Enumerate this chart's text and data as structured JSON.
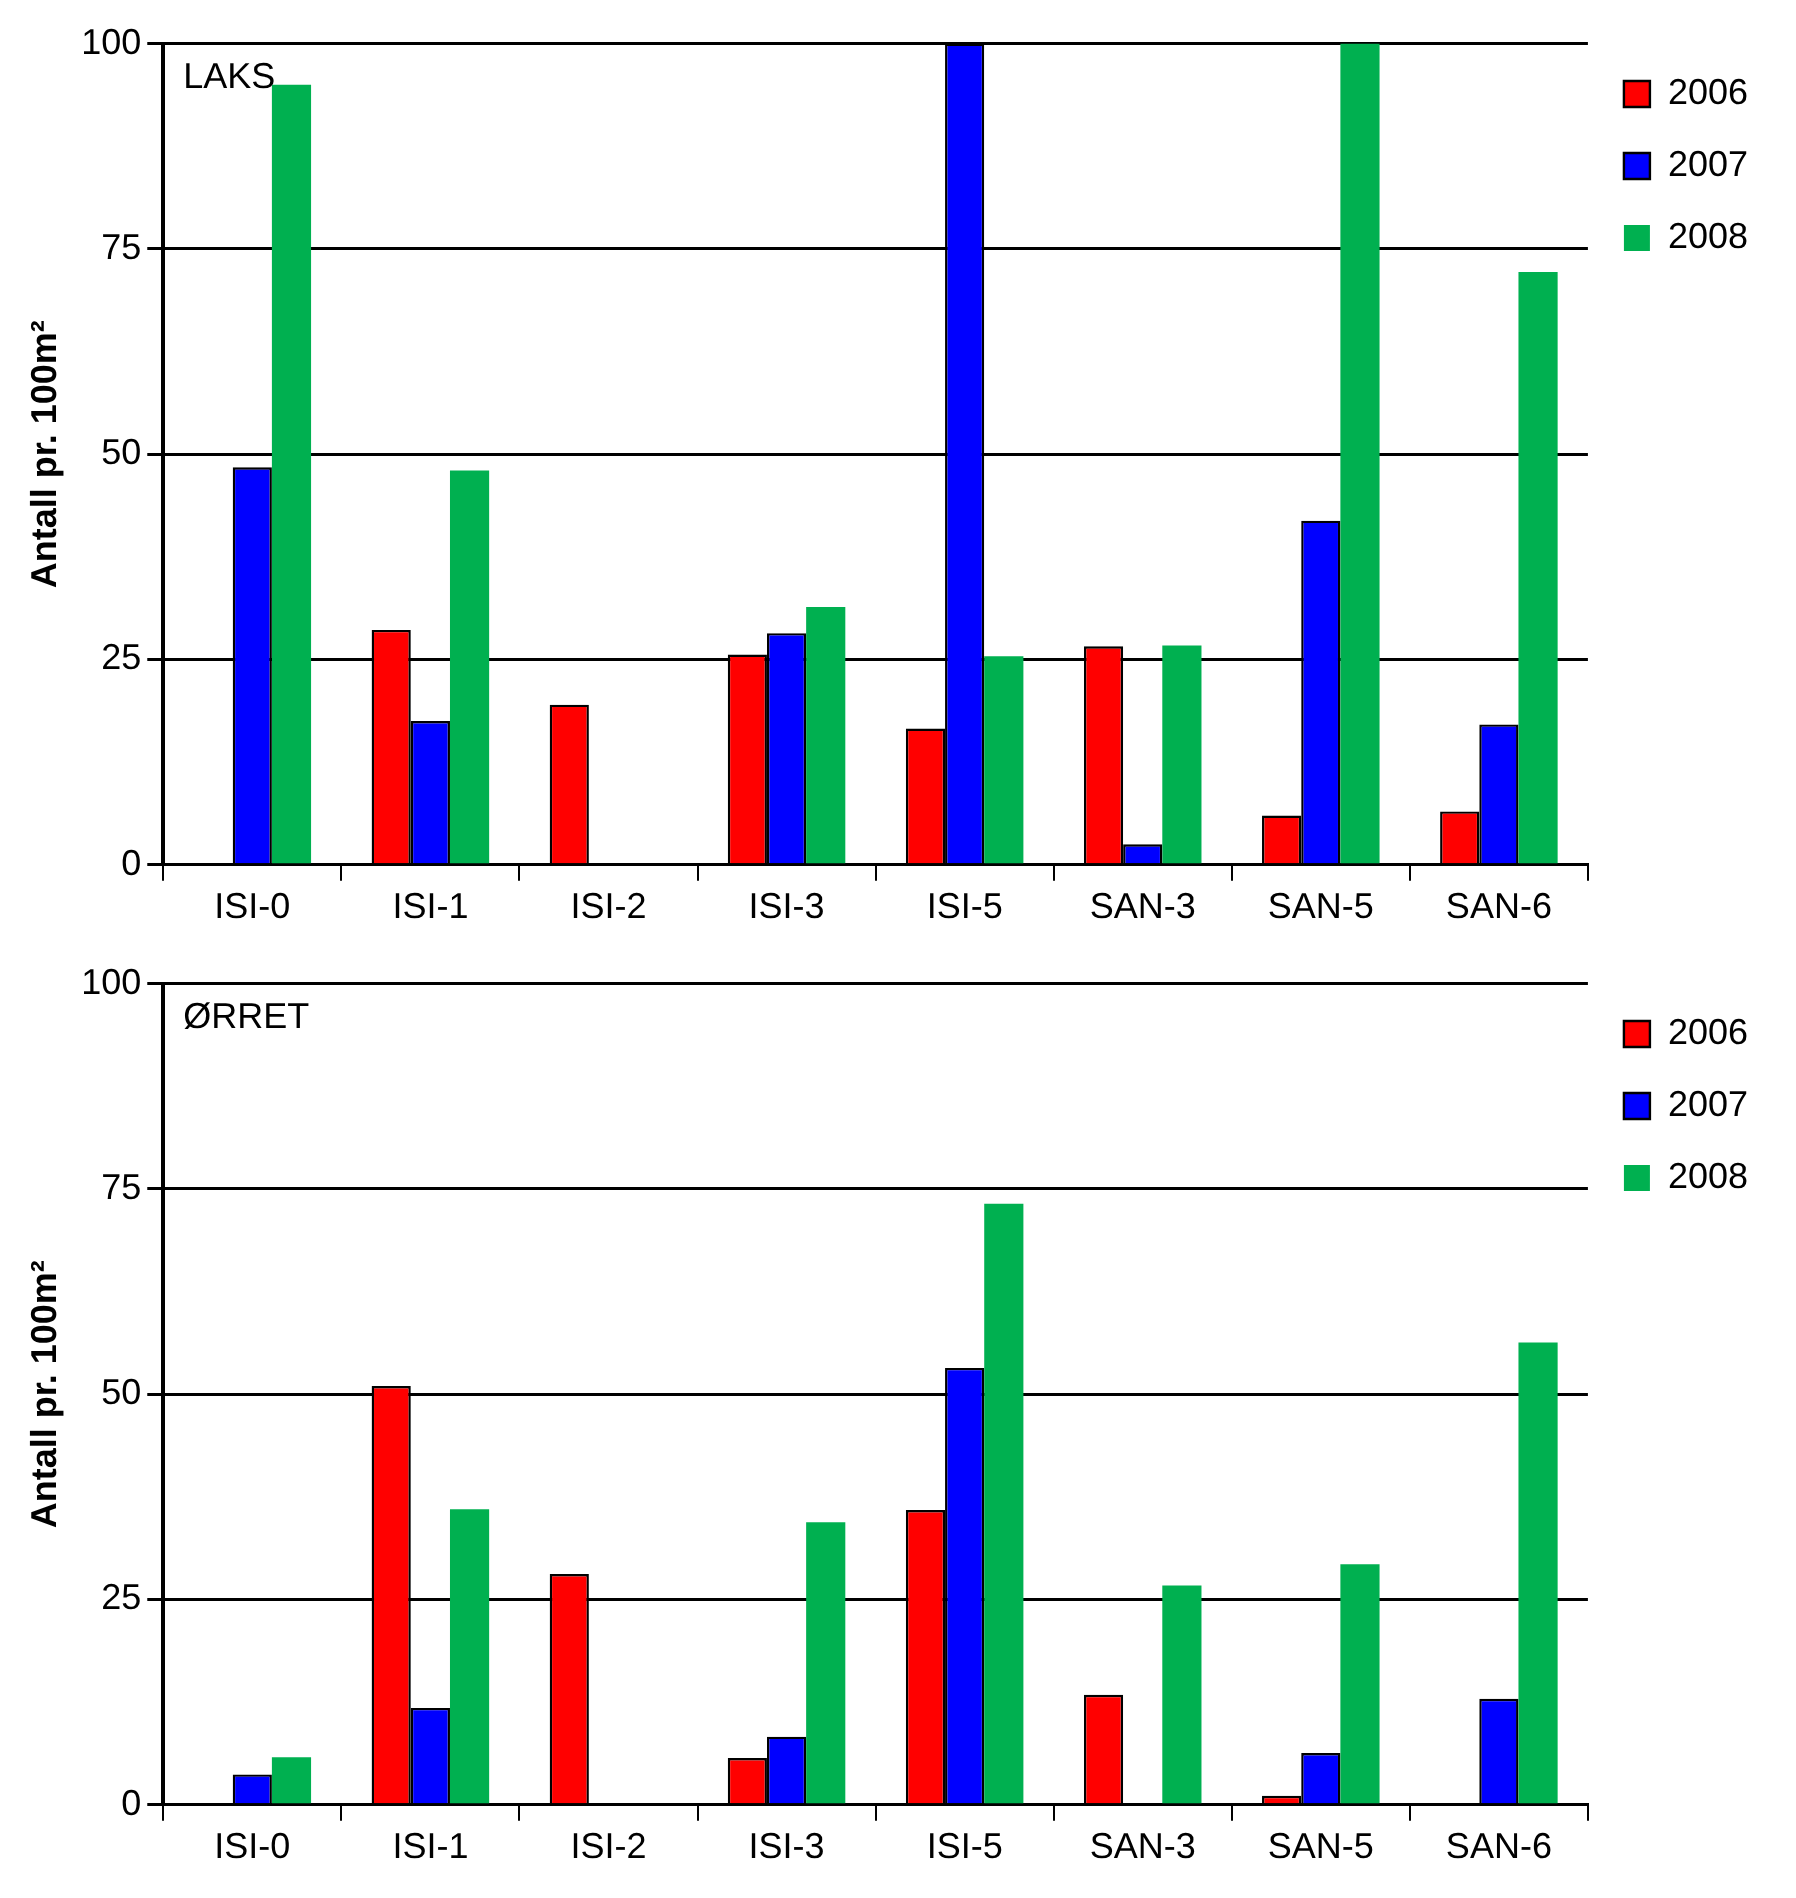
{
  "chart_data": [
    {
      "type": "bar",
      "annotations": [
        "LAKS"
      ],
      "ylabel": "Antall pr. 100m²",
      "categories": [
        "ISI-0",
        "ISI-1",
        "ISI-2",
        "ISI-3",
        "ISI-5",
        "SAN-3",
        "SAN-5",
        "SAN-6"
      ],
      "series": [
        {
          "name": "2006",
          "color": "#ff0000",
          "values": [
            0,
            28.6,
            19.5,
            25.6,
            16.6,
            26.6,
            6,
            6.5
          ]
        },
        {
          "name": "2007",
          "color": "#0000ff",
          "values": [
            48.4,
            17.5,
            0,
            28.2,
            100,
            2.5,
            41.9,
            17.1
          ]
        },
        {
          "name": "2008",
          "color": "#00b050",
          "values": [
            95,
            48,
            0,
            31.4,
            25.4,
            26.7,
            100,
            72.2
          ]
        }
      ],
      "ylim": [
        0,
        100
      ],
      "yticks": [
        0,
        25,
        50,
        75,
        100
      ],
      "grid": "y",
      "legend": "top right"
    },
    {
      "type": "bar",
      "annotations": [
        "ØRRET"
      ],
      "ylabel": "Antall pr. 100m²",
      "categories": [
        "ISI-0",
        "ISI-1",
        "ISI-2",
        "ISI-3",
        "ISI-5",
        "SAN-3",
        "SAN-5",
        "SAN-6"
      ],
      "series": [
        {
          "name": "2006",
          "color": "#ff0000",
          "values": [
            0,
            51,
            28.1,
            5.7,
            35.9,
            13.4,
            1.1,
            0
          ]
        },
        {
          "name": "2007",
          "color": "#0000ff",
          "values": [
            3.7,
            11.8,
            0,
            8.3,
            53.2,
            0,
            6.3,
            12.9
          ]
        },
        {
          "name": "2008",
          "color": "#00b050",
          "values": [
            5.8,
            36,
            0,
            34.4,
            73.2,
            26.7,
            29.3,
            56.3
          ]
        }
      ],
      "ylim": [
        0,
        100
      ],
      "yticks": [
        0,
        25,
        50,
        75,
        100
      ],
      "grid": "y",
      "legend": "top right"
    }
  ]
}
